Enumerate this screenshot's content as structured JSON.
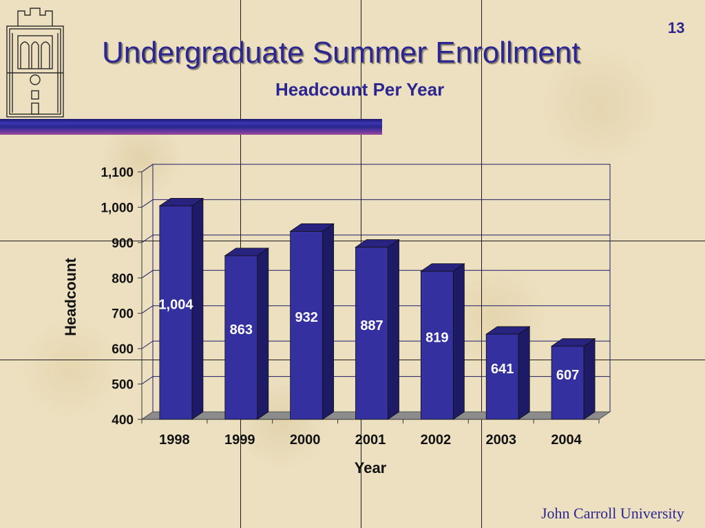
{
  "slide": {
    "title": "Undergraduate Summer Enrollment",
    "subtitle": "Headcount Per Year",
    "page_number": "13",
    "footer": "John Carroll University"
  },
  "colors": {
    "title": "#2b2690",
    "bar_front": "#34309f",
    "bar_side": "#1d1a66",
    "bar_top": "#27237f",
    "floor": "#8c8c8c",
    "accent_bar": "#2a2690"
  },
  "icons": {
    "logo": "building-tower-icon"
  },
  "chart_data": {
    "type": "bar",
    "style": "3d-column",
    "categories": [
      "1998",
      "1999",
      "2000",
      "2001",
      "2002",
      "2003",
      "2004"
    ],
    "values": [
      1004,
      863,
      932,
      887,
      819,
      641,
      607
    ],
    "data_labels": [
      "1,004",
      "863",
      "932",
      "887",
      "819",
      "641",
      "607"
    ],
    "xlabel": "Year",
    "ylabel": "Headcount",
    "ylim": [
      400,
      1100
    ],
    "yticks": [
      400,
      500,
      600,
      700,
      800,
      900,
      1000,
      1100
    ],
    "ytick_labels": [
      "400",
      "500",
      "600",
      "700",
      "800",
      "900",
      "1,000",
      "1,100"
    ],
    "grid": true,
    "legend": "none"
  }
}
